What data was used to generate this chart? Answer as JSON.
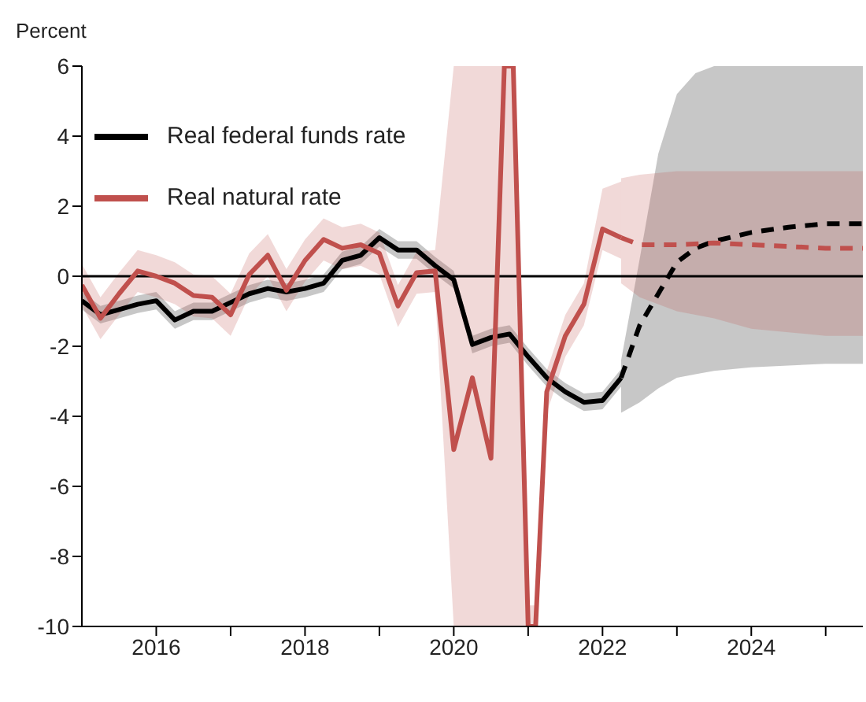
{
  "chart_data": {
    "type": "line",
    "ylabel": "Percent",
    "xlim": [
      2015,
      2025.5
    ],
    "ylim": [
      -10,
      6
    ],
    "xticks": [
      2016,
      {
        "value": 2017,
        "label": null
      },
      2018,
      {
        "value": 2019,
        "label": null
      },
      2020,
      {
        "value": 2021,
        "label": null
      },
      2022,
      {
        "value": 2023,
        "label": null
      },
      2024,
      {
        "value": 2025,
        "label": null
      }
    ],
    "yticks": [
      -10,
      -8,
      -6,
      -4,
      -2,
      0,
      2,
      4,
      6
    ],
    "grid": false,
    "legend": "top left",
    "marker": "none",
    "ref_lines": [
      {
        "axis": "y",
        "value": 0,
        "color": "#000000"
      }
    ],
    "series": [
      {
        "name": "Real federal funds rate",
        "color": "#000000",
        "line_style": "solid",
        "x": [
          2015,
          2015.25,
          2015.5,
          2015.75,
          2016,
          2016.25,
          2016.5,
          2016.75,
          2017,
          2017.25,
          2017.5,
          2017.75,
          2018,
          2018.25,
          2018.5,
          2018.75,
          2019,
          2019.25,
          2019.5,
          2019.75,
          2020,
          2020.25,
          2020.5,
          2020.75,
          2021,
          2021.25,
          2021.5,
          2021.75,
          2022,
          2022.25
        ],
        "values": [
          -0.7,
          -1.1,
          -0.95,
          -0.8,
          -0.7,
          -1.25,
          -1.0,
          -1.0,
          -0.75,
          -0.5,
          -0.35,
          -0.45,
          -0.35,
          -0.2,
          0.45,
          0.6,
          1.1,
          0.75,
          0.75,
          0.3,
          -0.1,
          -1.95,
          -1.75,
          -1.65,
          -2.3,
          -2.9,
          -3.3,
          -3.6,
          -3.55,
          -2.9
        ],
        "lower": [
          -0.95,
          -1.35,
          -1.2,
          -1.05,
          -0.95,
          -1.5,
          -1.25,
          -1.25,
          -1.0,
          -0.75,
          -0.6,
          -0.7,
          -0.6,
          -0.45,
          0.2,
          0.35,
          0.85,
          0.5,
          0.5,
          0.05,
          -0.35,
          -2.2,
          -2.0,
          -1.9,
          -2.55,
          -3.15,
          -3.55,
          -3.85,
          -3.8,
          -3.15
        ],
        "upper": [
          -0.45,
          -0.85,
          -0.7,
          -0.55,
          -0.45,
          -1.0,
          -0.75,
          -0.75,
          -0.5,
          -0.25,
          -0.1,
          -0.2,
          -0.1,
          0.05,
          0.7,
          0.85,
          1.35,
          1.0,
          1.0,
          0.55,
          0.15,
          -1.7,
          -1.5,
          -1.4,
          -2.05,
          -2.65,
          -3.05,
          -3.35,
          -3.3,
          -2.65
        ]
      },
      {
        "name": "Real natural rate",
        "color": "#c0504d",
        "line_style": "solid",
        "x": [
          2015,
          2015.25,
          2015.5,
          2015.75,
          2016,
          2016.25,
          2016.5,
          2016.75,
          2017,
          2017.25,
          2017.5,
          2017.75,
          2018,
          2018.25,
          2018.5,
          2018.75,
          2019,
          2019.25,
          2019.5,
          2019.75,
          2020,
          2020.25,
          2020.5,
          2020.68,
          2020.8,
          2021,
          2021.1,
          2021.25,
          2021.5,
          2021.75,
          2022,
          2022.25
        ],
        "values": [
          -0.25,
          -1.2,
          -0.5,
          0.15,
          0.0,
          -0.2,
          -0.55,
          -0.6,
          -1.1,
          0.05,
          0.6,
          -0.4,
          0.45,
          1.05,
          0.8,
          0.9,
          0.65,
          -0.85,
          0.1,
          0.15,
          -4.95,
          -2.9,
          -5.2,
          6,
          6,
          -10,
          -10,
          -3.3,
          -1.7,
          -0.8,
          1.35,
          1.1
        ],
        "lower": [
          -0.85,
          -1.8,
          -1.1,
          -0.45,
          -0.6,
          -0.8,
          -1.15,
          -1.2,
          -1.7,
          -0.55,
          0,
          -1.0,
          -0.15,
          0.45,
          0.2,
          0.3,
          0.05,
          -1.45,
          -0.5,
          -0.45,
          -10,
          -10,
          -10,
          -10,
          -10,
          -10,
          -10,
          -3.9,
          -2.3,
          -1.4,
          0.75,
          0.5
        ],
        "upper": [
          0.35,
          -0.6,
          0.1,
          0.75,
          0.6,
          0.4,
          0.05,
          0,
          -0.5,
          0.65,
          1.2,
          0.2,
          1.05,
          1.65,
          1.4,
          1.5,
          1.25,
          -0.25,
          0.7,
          0.75,
          6,
          6,
          6,
          6,
          6,
          -9.4,
          -9.4,
          -2.7,
          -1.1,
          -0.2,
          2.5,
          2.7
        ]
      },
      {
        "color": "#000000",
        "line_style": "dashed",
        "x": [
          2022.25,
          2022.5,
          2022.75,
          2023,
          2023.25,
          2023.5,
          2024,
          2024.5,
          2025,
          2025.5
        ],
        "values": [
          -2.9,
          -1.4,
          -0.5,
          0.4,
          0.8,
          1.0,
          1.25,
          1.4,
          1.5,
          1.5
        ],
        "lower": [
          -3.9,
          -3.6,
          -3.2,
          -2.9,
          -2.8,
          -2.7,
          -2.6,
          -2.55,
          -2.5,
          -2.5
        ],
        "upper": [
          -2.4,
          0.5,
          3.5,
          5.2,
          5.8,
          6,
          6,
          6,
          6,
          6
        ]
      },
      {
        "color": "#c0504d",
        "line_style": "dashed",
        "x": [
          2022.25,
          2022.5,
          2023,
          2023.5,
          2024,
          2024.5,
          2025,
          2025.5
        ],
        "values": [
          1.1,
          0.9,
          0.9,
          0.95,
          0.9,
          0.85,
          0.8,
          0.8
        ],
        "lower": [
          -0.2,
          -0.6,
          -1.0,
          -1.2,
          -1.5,
          -1.6,
          -1.7,
          -1.7
        ],
        "upper": [
          2.8,
          2.9,
          3.0,
          3.0,
          3.0,
          3.0,
          3.0,
          3.0
        ]
      }
    ]
  }
}
